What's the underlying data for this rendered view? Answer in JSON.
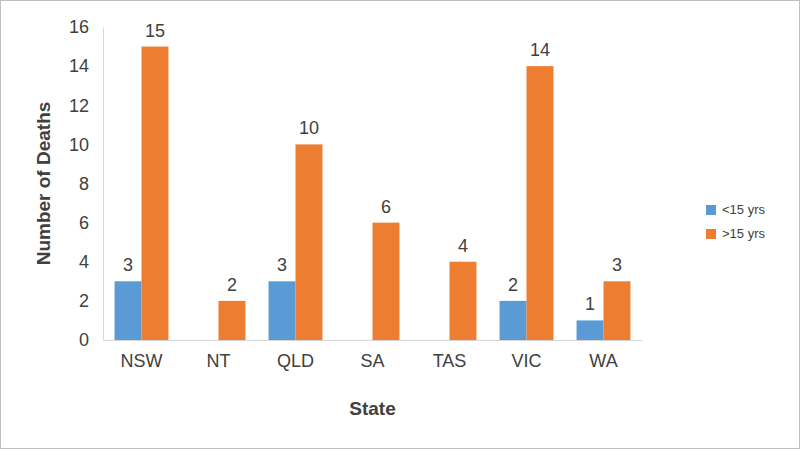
{
  "chart_data": {
    "type": "bar",
    "x_label": "State",
    "y_label": "Number of Deaths",
    "categories": [
      "NSW",
      "NT",
      "QLD",
      "SA",
      "TAS",
      "VIC",
      "WA"
    ],
    "series": [
      {
        "name": "<15 yrs",
        "color": "#5b9bd5",
        "values": [
          3,
          null,
          3,
          null,
          null,
          2,
          1
        ]
      },
      {
        "name": ">15 yrs",
        "color": "#ed7d31",
        "values": [
          15,
          2,
          10,
          6,
          4,
          14,
          3
        ]
      }
    ],
    "ylim": [
      0,
      16
    ],
    "yticks": [
      0,
      2,
      4,
      6,
      8,
      10,
      12,
      14,
      16
    ],
    "grid": false,
    "legend": "right",
    "data_labels": true
  }
}
